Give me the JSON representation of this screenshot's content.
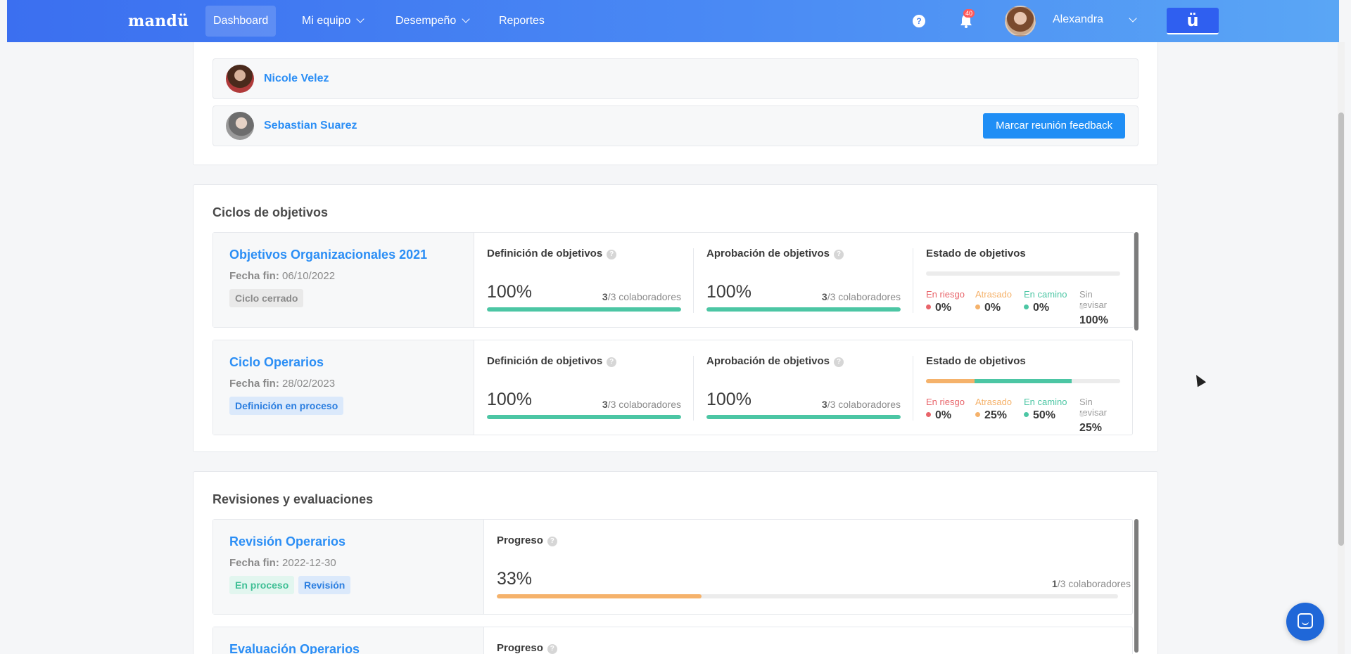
{
  "nav": {
    "logo": "mandü",
    "items": [
      {
        "label": "Dashboard",
        "active": true
      },
      {
        "label": "Mi equipo",
        "dropdown": true
      },
      {
        "label": "Desempeño",
        "dropdown": true
      },
      {
        "label": "Reportes"
      }
    ],
    "help": "?",
    "notifications_count": "40",
    "user_name": "Alexandra",
    "brand_button": "ü"
  },
  "feedback": {
    "people": [
      {
        "name": "Nicole Velez"
      },
      {
        "name": "Sebastian Suarez",
        "button": "Marcar reunión feedback"
      }
    ]
  },
  "cycles": {
    "title": "Ciclos de objetivos",
    "items": [
      {
        "name": "Objetivos Organizacionales 2021",
        "date_label": "Fecha fin:",
        "date": "06/10/2022",
        "tag": "Ciclo cerrado",
        "definition": {
          "title": "Definición de objetivos",
          "pct": "100%",
          "count": "3",
          "total": "/3 colaboradores",
          "fill": 1.0
        },
        "approval": {
          "title": "Aprobación de objetivos",
          "pct": "100%",
          "count": "3",
          "total": "/3 colaboradores",
          "fill": 1.0
        },
        "estado": {
          "title": "Estado de objetivos",
          "labels": [
            "En riesgo",
            "Atrasado",
            "En camino",
            "Sin revisar"
          ],
          "values": [
            "0%",
            "0%",
            "0%",
            "100%"
          ],
          "fractions": [
            0,
            0,
            0,
            1
          ]
        }
      },
      {
        "name": "Ciclo Operarios",
        "date_label": "Fecha fin:",
        "date": "28/02/2023",
        "tag": "Definición en proceso",
        "definition": {
          "title": "Definición de objetivos",
          "pct": "100%",
          "count": "3",
          "total": "/3 colaboradores",
          "fill": 1.0
        },
        "approval": {
          "title": "Aprobación de objetivos",
          "pct": "100%",
          "count": "3",
          "total": "/3 colaboradores",
          "fill": 1.0
        },
        "estado": {
          "title": "Estado de objetivos",
          "labels": [
            "En riesgo",
            "Atrasado",
            "En camino",
            "Sin revisar"
          ],
          "values": [
            "0%",
            "25%",
            "50%",
            "25%"
          ],
          "fractions": [
            0,
            0.25,
            0.5,
            0.25
          ]
        }
      }
    ],
    "status_colors": [
      "#e8646a",
      "#f5b26b",
      "#4cc6a4",
      "#ececec"
    ]
  },
  "reviews": {
    "title": "Revisiones y evaluaciones",
    "items": [
      {
        "name": "Revisión Operarios",
        "date_label": "Fecha fin:",
        "date": "2022-12-30",
        "tags": [
          "En proceso",
          "Revisión"
        ],
        "progress_title": "Progreso",
        "pct": "33%",
        "count": "1",
        "total": "/3 colaboradores",
        "fill": 0.33
      },
      {
        "name": "Evaluación Operarios",
        "progress_title": "Progreso"
      }
    ]
  }
}
